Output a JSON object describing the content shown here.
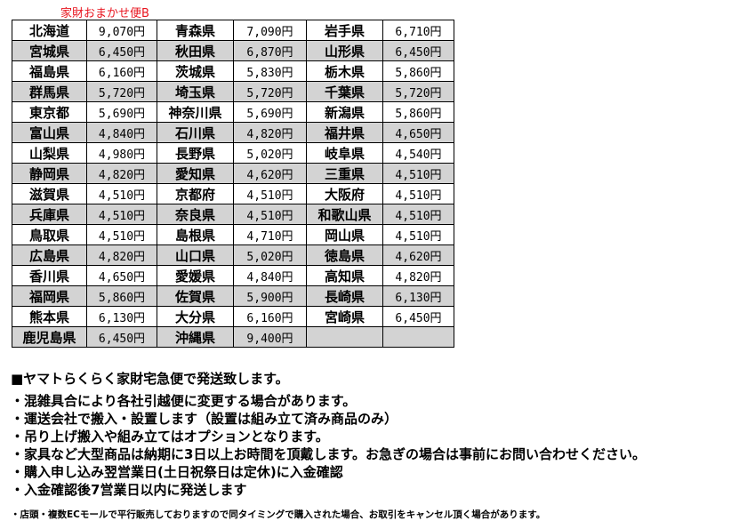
{
  "title": "家財おまかせ便B",
  "rows": [
    [
      [
        "北海道",
        "9,070円"
      ],
      [
        "青森県",
        "7,090円"
      ],
      [
        "岩手県",
        "6,710円"
      ]
    ],
    [
      [
        "宮城県",
        "6,450円"
      ],
      [
        "秋田県",
        "6,870円"
      ],
      [
        "山形県",
        "6,450円"
      ]
    ],
    [
      [
        "福島県",
        "6,160円"
      ],
      [
        "茨城県",
        "5,830円"
      ],
      [
        "栃木県",
        "5,860円"
      ]
    ],
    [
      [
        "群馬県",
        "5,720円"
      ],
      [
        "埼玉県",
        "5,720円"
      ],
      [
        "千葉県",
        "5,720円"
      ]
    ],
    [
      [
        "東京都",
        "5,690円"
      ],
      [
        "神奈川県",
        "5,690円"
      ],
      [
        "新潟県",
        "5,860円"
      ]
    ],
    [
      [
        "富山県",
        "4,840円"
      ],
      [
        "石川県",
        "4,820円"
      ],
      [
        "福井県",
        "4,650円"
      ]
    ],
    [
      [
        "山梨県",
        "4,980円"
      ],
      [
        "長野県",
        "5,020円"
      ],
      [
        "岐阜県",
        "4,540円"
      ]
    ],
    [
      [
        "静岡県",
        "4,820円"
      ],
      [
        "愛知県",
        "4,620円"
      ],
      [
        "三重県",
        "4,510円"
      ]
    ],
    [
      [
        "滋賀県",
        "4,510円"
      ],
      [
        "京都府",
        "4,510円"
      ],
      [
        "大阪府",
        "4,510円"
      ]
    ],
    [
      [
        "兵庫県",
        "4,510円"
      ],
      [
        "奈良県",
        "4,510円"
      ],
      [
        "和歌山県",
        "4,510円"
      ]
    ],
    [
      [
        "鳥取県",
        "4,510円"
      ],
      [
        "島根県",
        "4,710円"
      ],
      [
        "岡山県",
        "4,510円"
      ]
    ],
    [
      [
        "広島県",
        "4,820円"
      ],
      [
        "山口県",
        "5,020円"
      ],
      [
        "徳島県",
        "4,620円"
      ]
    ],
    [
      [
        "香川県",
        "4,650円"
      ],
      [
        "愛媛県",
        "4,840円"
      ],
      [
        "高知県",
        "4,820円"
      ]
    ],
    [
      [
        "福岡県",
        "5,860円"
      ],
      [
        "佐賀県",
        "5,900円"
      ],
      [
        "長崎県",
        "6,130円"
      ]
    ],
    [
      [
        "熊本県",
        "6,130円"
      ],
      [
        "大分県",
        "6,160円"
      ],
      [
        "宮崎県",
        "6,450円"
      ]
    ],
    [
      [
        "鹿児島県",
        "6,450円"
      ],
      [
        "沖縄県",
        "9,400円"
      ],
      [
        "",
        ""
      ]
    ]
  ],
  "notes": {
    "heading": "■ヤマトらくらく家財宅急便で発送致します。",
    "items": [
      "・混雑具合により各社引越便に変更する場合があります。",
      "・運送会社で搬入・設置します（設置は組み立て済み商品のみ）",
      "・吊り上げ搬入や組み立てはオプションとなります。",
      "・家具など大型商品は納期に3日以上お時間を頂戴します。お急ぎの場合は事前にお問い合わせください。",
      "・購入申し込み翌営業日(土日祝祭日は定休)に入金確認",
      "・入金確認後7営業日以内に発送します"
    ],
    "small": "・店頭・複数ECモールで平行販売しておりますので同タイミングで購入された場合、お取引をキャンセル頂く場合があります。"
  },
  "colors": {
    "title": "#e8141e",
    "alt_row": "#d3d3d3"
  }
}
